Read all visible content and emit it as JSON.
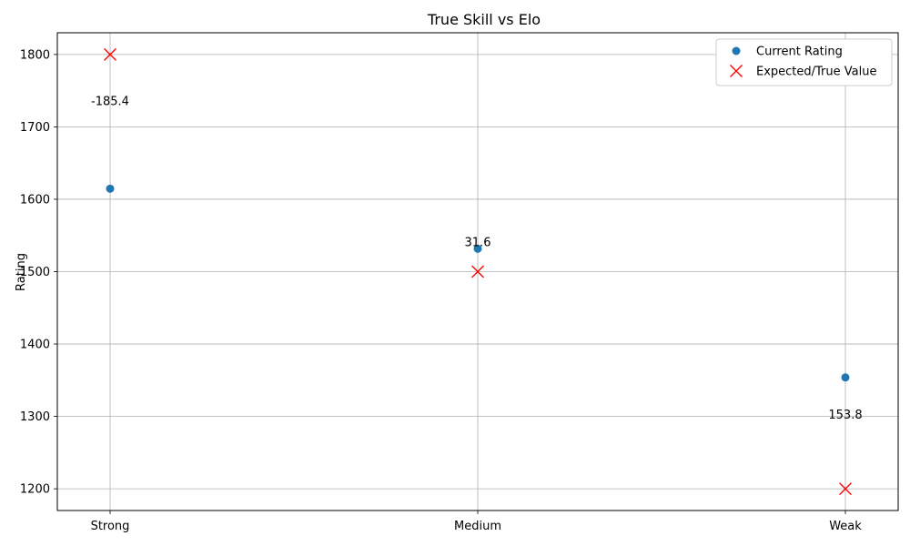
{
  "chart_data": {
    "type": "scatter",
    "title": "True Skill vs Elo",
    "xlabel": "",
    "ylabel": "Rating",
    "categories": [
      "Strong",
      "Medium",
      "Weak"
    ],
    "ylim": [
      1170,
      1830
    ],
    "yticks": [
      1200,
      1300,
      1400,
      1500,
      1600,
      1700,
      1800
    ],
    "grid": true,
    "legend_position": "upper right",
    "series": [
      {
        "name": "Current Rating",
        "marker": "circle",
        "color": "#1f77b4",
        "values": [
          1614.6,
          1531.6,
          1353.8
        ]
      },
      {
        "name": "Expected/True Value",
        "marker": "x",
        "color": "#ff0000",
        "values": [
          1800,
          1500,
          1200
        ]
      }
    ],
    "annotations": [
      {
        "category": "Strong",
        "text": "-185.4",
        "y": 1726
      },
      {
        "category": "Medium",
        "text": "31.6",
        "y": 1531.6
      },
      {
        "category": "Weak",
        "text": "153.8",
        "y": 1293
      }
    ]
  }
}
